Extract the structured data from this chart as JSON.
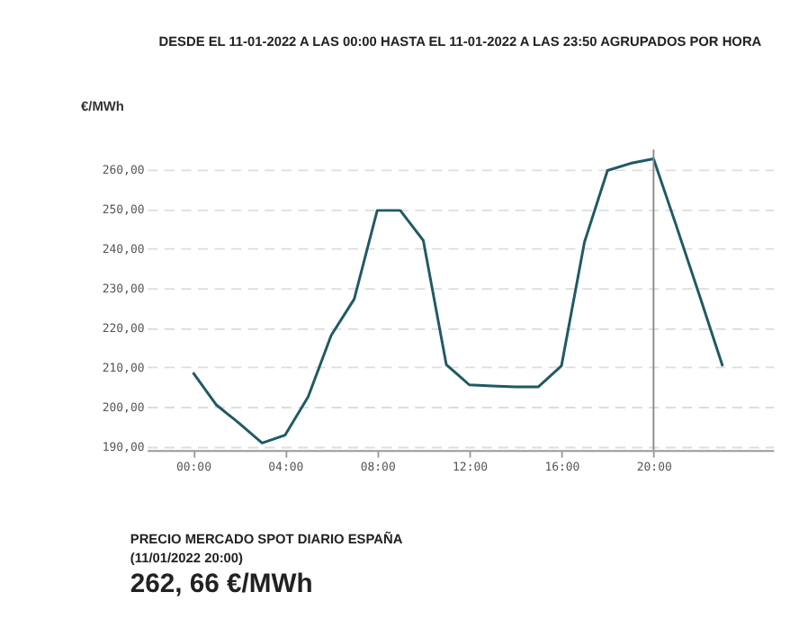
{
  "chart_data": {
    "type": "line",
    "title": "DESDE EL 11-01-2022 A LAS 00:00 HASTA EL 11-01-2022 A LAS 23:50 AGRUPADOS POR HORA",
    "ylabel": "€/MWh",
    "x": [
      0,
      1,
      2,
      3,
      4,
      5,
      6,
      7,
      8,
      9,
      10,
      11,
      12,
      13,
      14,
      15,
      16,
      17,
      18,
      19,
      20,
      21,
      22,
      23
    ],
    "series": [
      {
        "color": "#1f5a66",
        "values": [
          208.6,
          200.5,
          195.8,
          190.8,
          192.8,
          202.5,
          218,
          227.2,
          249.6,
          249.6,
          242,
          210.6,
          205.5,
          205.2,
          205,
          205,
          210.3,
          241.6,
          259.7,
          261.5,
          262.66,
          245.5,
          228,
          210.2
        ]
      }
    ],
    "xlim": [
      -2,
      25.2
    ],
    "ylim": [
      189,
      265
    ],
    "xticks": [
      {
        "value": 0,
        "label": "00:00"
      },
      {
        "value": 4,
        "label": "04:00"
      },
      {
        "value": 8,
        "label": "08:00"
      },
      {
        "value": 12,
        "label": "12:00"
      },
      {
        "value": 16,
        "label": "16:00"
      },
      {
        "value": 20,
        "label": "20:00"
      }
    ],
    "yticks": [
      {
        "value": 190,
        "label": "190,00"
      },
      {
        "value": 200,
        "label": "200,00"
      },
      {
        "value": 210,
        "label": "210,00"
      },
      {
        "value": 220,
        "label": "220,00"
      },
      {
        "value": 230,
        "label": "230,00"
      },
      {
        "value": 240,
        "label": "240,00"
      },
      {
        "value": 250,
        "label": "250,00"
      },
      {
        "value": 260,
        "label": "260,00"
      }
    ],
    "grid": "y",
    "line_style": "solid",
    "marker": "none",
    "ref_lines": [
      {
        "axis": "x",
        "value": 20,
        "color": "#888888",
        "line_style": "solid"
      }
    ],
    "annotations": [
      "PRECIO MERCADO SPOT DIARIO ESPAÑA",
      "(11/01/2022 20:00)",
      "262, 66 €/MWh"
    ]
  }
}
